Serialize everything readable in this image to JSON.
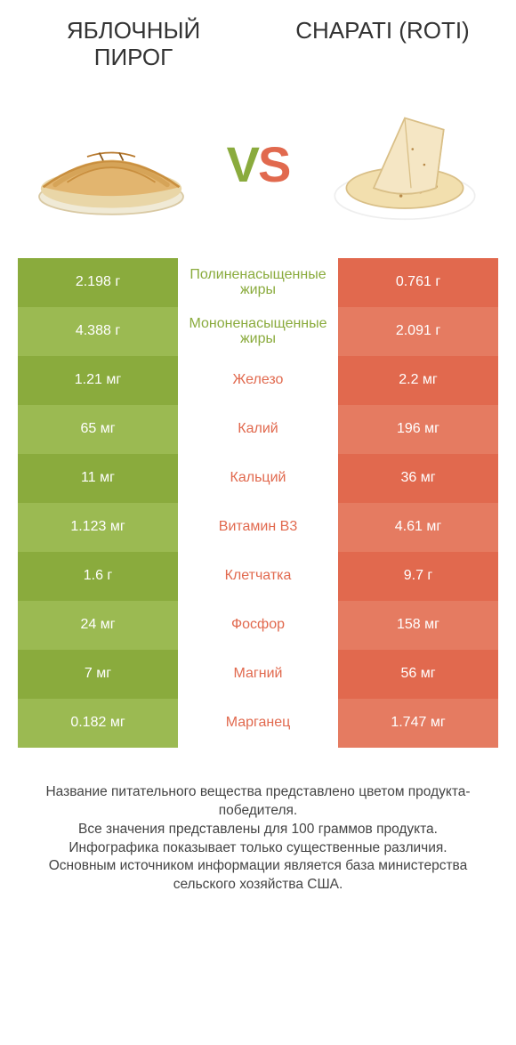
{
  "colors": {
    "green": "#8aab3d",
    "green_alt": "#9bba52",
    "orange": "#e1694e",
    "orange_alt": "#e57b61",
    "text": "#333333",
    "bg": "#ffffff"
  },
  "header": {
    "left_title": "ЯБЛОЧНЫЙ ПИРОГ",
    "right_title": "CHAPATI (ROTI)",
    "vs_v": "V",
    "vs_s": "S"
  },
  "table": {
    "rows": [
      {
        "left": "2.198 г",
        "mid": "Полиненасыщенные жиры",
        "right": "0.761 г",
        "winner": "left"
      },
      {
        "left": "4.388 г",
        "mid": "Мононенасыщенные жиры",
        "right": "2.091 г",
        "winner": "left"
      },
      {
        "left": "1.21 мг",
        "mid": "Железо",
        "right": "2.2 мг",
        "winner": "right"
      },
      {
        "left": "65 мг",
        "mid": "Калий",
        "right": "196 мг",
        "winner": "right"
      },
      {
        "left": "11 мг",
        "mid": "Кальций",
        "right": "36 мг",
        "winner": "right"
      },
      {
        "left": "1.123 мг",
        "mid": "Витамин B3",
        "right": "4.61 мг",
        "winner": "right"
      },
      {
        "left": "1.6 г",
        "mid": "Клетчатка",
        "right": "9.7 г",
        "winner": "right"
      },
      {
        "left": "24 мг",
        "mid": "Фосфор",
        "right": "158 мг",
        "winner": "right"
      },
      {
        "left": "7 мг",
        "mid": "Магний",
        "right": "56 мг",
        "winner": "right"
      },
      {
        "left": "0.182 мг",
        "mid": "Марганец",
        "right": "1.747 мг",
        "winner": "right"
      }
    ]
  },
  "footer": {
    "line1": "Название питательного вещества представлено цветом продукта-победителя.",
    "line2": "Все значения представлены для 100 граммов продукта.",
    "line3": "Инфографика показывает только существенные различия.",
    "line4": "Основным источником информации является база министерства сельского хозяйства США."
  }
}
